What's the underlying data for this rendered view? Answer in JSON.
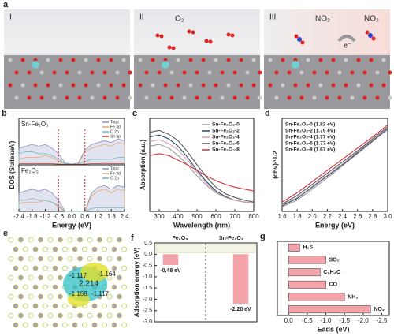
{
  "figure": {
    "panel_a": {
      "label": "a",
      "stages": [
        "I",
        "II",
        "III"
      ],
      "o2": "O₂",
      "no2_minus": "NO₂⁻",
      "no2": "NO₂",
      "electron": "e⁻"
    },
    "panel_e": {
      "label": "e",
      "charges": [
        "-1.117",
        "-1.164",
        "2.214",
        "-1.158",
        "-1.117"
      ]
    }
  },
  "chart_data": [
    {
      "type": "dos",
      "label": "b",
      "ylabel": "DOS (States/eV)",
      "xlabel": "Energy (eV)",
      "xlim": [
        -2.4,
        2.4
      ],
      "ylim": [
        0,
        1
      ],
      "xticks": [
        -2.4,
        -1.8,
        -1.2,
        -0.6,
        {
          "value": 0,
          "label": "0.0"
        },
        0.6,
        1.2,
        1.8,
        2.4
      ],
      "x": [
        -2.4,
        -2.1,
        -1.8,
        -1.5,
        -1.2,
        -0.9,
        -0.6,
        -0.3,
        0,
        0.3,
        0.6,
        0.9,
        1.2,
        1.5,
        1.8,
        2.1,
        2.4
      ],
      "panels": [
        {
          "title": "Sn-Fe₂O₃",
          "series": [
            {
              "name": "Total",
              "color": "#8a8fc4",
              "values": [
                0.45,
                0.5,
                0.55,
                0.5,
                0.55,
                0.45,
                0.3,
                0.05,
                0.02,
                0.05,
                0.4,
                0.55,
                0.6,
                0.65,
                0.6,
                0.7,
                0.65
              ]
            },
            {
              "name": "Fe 3d",
              "color": "#e8a86a",
              "values": [
                0.15,
                0.2,
                0.2,
                0.2,
                0.25,
                0.2,
                0.1,
                0.02,
                0.01,
                0.02,
                0.35,
                0.45,
                0.5,
                0.55,
                0.5,
                0.6,
                0.55
              ]
            },
            {
              "name": "O 2p",
              "color": "#72b9b9",
              "values": [
                0.3,
                0.35,
                0.35,
                0.3,
                0.3,
                0.25,
                0.15,
                0.03,
                0.01,
                0.02,
                0.1,
                0.15,
                0.15,
                0.15,
                0.15,
                0.2,
                0.2
              ]
            },
            {
              "name": "Sn 5p",
              "color": "#c0392b",
              "values": [
                0.03,
                0.03,
                0.04,
                0.03,
                0.03,
                0.03,
                0.02,
                0.01,
                0.01,
                0.01,
                0.02,
                0.03,
                0.03,
                0.04,
                0.03,
                0.03,
                0.03
              ]
            }
          ]
        },
        {
          "title": "Fe₂O₃",
          "series": [
            {
              "name": "Total",
              "color": "#8a8fc4",
              "values": [
                0.5,
                0.55,
                0.6,
                0.55,
                0.6,
                0.5,
                0.3,
                0,
                0,
                0,
                0,
                0.5,
                0.65,
                0.7,
                0.6,
                0.7,
                0.65
              ]
            },
            {
              "name": "Fe 3d",
              "color": "#e8a86a",
              "values": [
                0.2,
                0.25,
                0.25,
                0.25,
                0.3,
                0.25,
                0.12,
                0,
                0,
                0,
                0,
                0.42,
                0.55,
                0.6,
                0.5,
                0.6,
                0.55
              ]
            },
            {
              "name": "O 2p",
              "color": "#72b9b9",
              "values": [
                0.3,
                0.3,
                0.35,
                0.3,
                0.3,
                0.25,
                0.15,
                0,
                0,
                0,
                0,
                0.08,
                0.1,
                0.1,
                0.1,
                0.1,
                0.1
              ]
            }
          ]
        }
      ]
    },
    {
      "type": "line",
      "label": "c",
      "ylabel": "Absorption (a.u.)",
      "xlabel": "Wavelength (nm)",
      "x": [
        250,
        300,
        350,
        400,
        450,
        500,
        550,
        600,
        650,
        700,
        750,
        800
      ],
      "xlim": [
        250,
        800
      ],
      "xticks": [
        300,
        400,
        500,
        600,
        700,
        800
      ],
      "ylim": [
        0,
        1
      ],
      "series": [
        {
          "name": "Sn-Fe₂O₃-0",
          "color": "#9e9e9e",
          "values": [
            0.7,
            0.72,
            0.68,
            0.6,
            0.5,
            0.38,
            0.28,
            0.2,
            0.15,
            0.12,
            0.1,
            0.09
          ]
        },
        {
          "name": "Sn-Fe₂O₃-2",
          "color": "#1f4e6b",
          "values": [
            0.8,
            0.82,
            0.78,
            0.7,
            0.58,
            0.44,
            0.32,
            0.22,
            0.16,
            0.12,
            0.1,
            0.09
          ]
        },
        {
          "name": "Sn-Fe₂O₃-4",
          "color": "#d9a3b3",
          "values": [
            0.75,
            0.77,
            0.73,
            0.66,
            0.55,
            0.42,
            0.3,
            0.21,
            0.15,
            0.12,
            0.1,
            0.09
          ]
        },
        {
          "name": "Sn-Fe₂O₃-6",
          "color": "#5a5a5a",
          "values": [
            0.85,
            0.87,
            0.83,
            0.76,
            0.64,
            0.5,
            0.37,
            0.26,
            0.19,
            0.15,
            0.12,
            0.1
          ]
        },
        {
          "name": "Sn-Fe₂O₃-8",
          "color": "#d0343a",
          "values": [
            0.6,
            0.62,
            0.6,
            0.55,
            0.5,
            0.44,
            0.38,
            0.33,
            0.29,
            0.26,
            0.24,
            0.22
          ]
        }
      ]
    },
    {
      "type": "line",
      "label": "d",
      "ylabel": "(αhν)^1/2",
      "xlabel": "Energy (eV)",
      "x": [
        1.6,
        1.8,
        2.0,
        2.2,
        2.4,
        2.6,
        2.8,
        3.0
      ],
      "xlim": [
        1.6,
        3.0
      ],
      "xticks": [
        1.6,
        1.8,
        {
          "value": 2,
          "label": "2.0"
        },
        2.2,
        2.4,
        2.6,
        2.8,
        {
          "value": 3,
          "label": "3.0"
        }
      ],
      "ylim": [
        0,
        1
      ],
      "series": [
        {
          "name": "Sn-Fe₂O₃-0 (1.82 eV)",
          "color": "#9e9e9e",
          "values": [
            0.05,
            0.12,
            0.24,
            0.36,
            0.49,
            0.62,
            0.75,
            0.88
          ]
        },
        {
          "name": "Sn-Fe₂O₃-2 (1.79 eV)",
          "color": "#1f4e6b",
          "values": [
            0.06,
            0.14,
            0.26,
            0.38,
            0.5,
            0.63,
            0.76,
            0.89
          ]
        },
        {
          "name": "Sn-Fe₂O₃-4 (1.77 eV)",
          "color": "#d9a3b3",
          "values": [
            0.07,
            0.15,
            0.27,
            0.39,
            0.51,
            0.64,
            0.77,
            0.9
          ]
        },
        {
          "name": "Sn-Fe₂O₃-6 (1.73 eV)",
          "color": "#5a5a5a",
          "values": [
            0.08,
            0.17,
            0.29,
            0.41,
            0.53,
            0.65,
            0.78,
            0.91
          ]
        },
        {
          "name": "Sn-Fe₂O₃-8 (1.67 eV)",
          "color": "#d0343a",
          "values": [
            0.1,
            0.2,
            0.32,
            0.44,
            0.56,
            0.68,
            0.8,
            0.93
          ]
        }
      ]
    },
    {
      "type": "bar",
      "label": "f",
      "ylabel": "Adsorption energy (eV)",
      "categories": [
        "Fe₂O₃",
        "Sn-Fe₂O₃"
      ],
      "values": [
        -0.48,
        -2.2
      ],
      "value_labels": [
        "-0.48 eV",
        "-2.20 eV"
      ],
      "color": "#f5a3aa",
      "ylim": [
        -3,
        0.5
      ],
      "yticks": [
        0.5,
        {
          "value": 0,
          "label": "0.0"
        },
        -0.5,
        {
          "value": -1,
          "label": "-1.0"
        },
        -1.5,
        {
          "value": -2,
          "label": "-2.0"
        },
        -2.5,
        {
          "value": -3,
          "label": "-3.0"
        }
      ]
    },
    {
      "type": "hbar",
      "label": "g",
      "xlabel": "Eads (eV)",
      "categories": [
        "H₂S",
        "SO₂",
        "C₂H₄O",
        "CO",
        "NH₃",
        "NO₂"
      ],
      "values": [
        -0.3,
        -1.0,
        -0.85,
        -1.0,
        -1.5,
        -2.2
      ],
      "color": "#f5a3aa",
      "xlim": [
        0.3,
        -2.7
      ],
      "xticks": [
        {
          "value": 0,
          "label": "0.0"
        },
        -0.5,
        {
          "value": -1,
          "label": "-1.0"
        },
        -1.5,
        {
          "value": -2,
          "label": "-2.0"
        },
        -2.5
      ]
    }
  ]
}
